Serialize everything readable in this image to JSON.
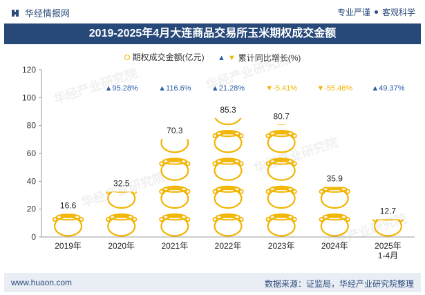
{
  "header": {
    "brand": "华经情报网",
    "slogan_left": "专业严谨",
    "slogan_right": "客观科学"
  },
  "title": "2019-2025年4月大连商品交易所玉米期权成交金额",
  "legend": {
    "bar_label": "期权成交金额(亿元)",
    "growth_label": "累计同比增长(%)"
  },
  "footer": {
    "url": "www.huaon.com",
    "source": "数据来源：证监局，华经产业研究院整理"
  },
  "watermark_text": "华经产业研究院",
  "colors": {
    "title_bg": "#27497a",
    "coin": "#f2b400",
    "up": "#2b5da8",
    "down": "#f2b400"
  },
  "chart_data": {
    "type": "bar",
    "categories": [
      "2019年",
      "2020年",
      "2021年",
      "2022年",
      "2023年",
      "2024年",
      "2025年\n1-4月"
    ],
    "series": [
      {
        "name": "期权成交金额(亿元)",
        "values": [
          16.6,
          32.5,
          70.3,
          85.3,
          80.7,
          35.9,
          12.7
        ]
      }
    ],
    "growth": [
      null,
      "95.28%",
      "116.6%",
      "21.28%",
      "-5.41%",
      "-55.46%",
      "49.37%"
    ],
    "growth_direction": [
      null,
      "up",
      "up",
      "up",
      "down",
      "down",
      "up"
    ],
    "ylim": [
      0,
      120
    ],
    "yticks": [
      0,
      20,
      40,
      60,
      80,
      100,
      120
    ],
    "icon": "gold-pot-icon"
  }
}
